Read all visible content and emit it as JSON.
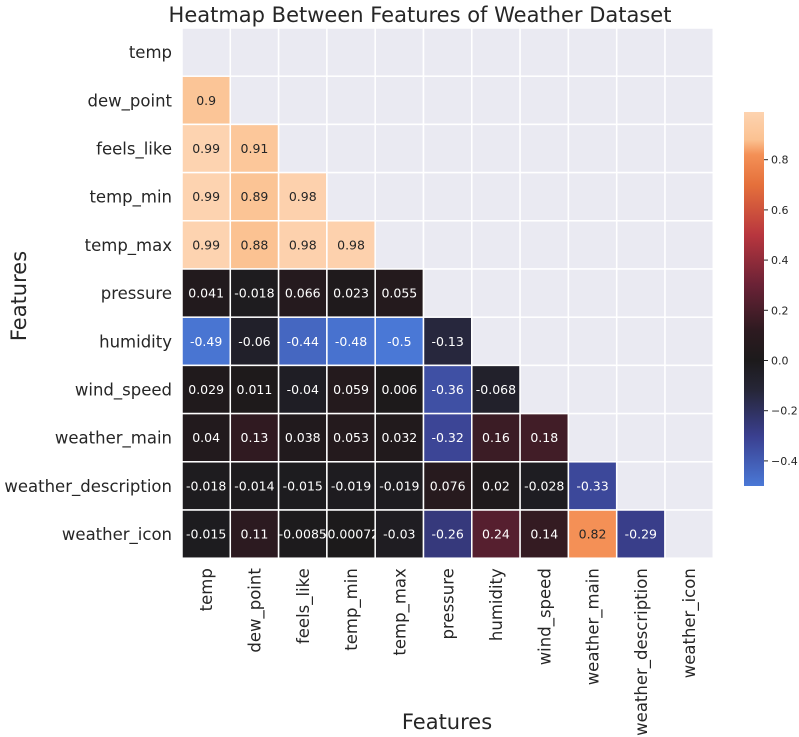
{
  "chart_data": {
    "type": "heatmap",
    "title": "Heatmap Between Features of Weather Dataset",
    "xlabel": "Features",
    "ylabel": "Features",
    "labels": [
      "temp",
      "dew_point",
      "feels_like",
      "temp_min",
      "temp_max",
      "pressure",
      "humidity",
      "wind_speed",
      "weather_main",
      "weather_description",
      "weather_icon"
    ],
    "mask": "upper-triangle-and-diagonal",
    "values": [
      [
        null,
        null,
        null,
        null,
        null,
        null,
        null,
        null,
        null,
        null,
        null
      ],
      [
        0.9,
        null,
        null,
        null,
        null,
        null,
        null,
        null,
        null,
        null,
        null
      ],
      [
        0.99,
        0.91,
        null,
        null,
        null,
        null,
        null,
        null,
        null,
        null,
        null
      ],
      [
        0.99,
        0.89,
        0.98,
        null,
        null,
        null,
        null,
        null,
        null,
        null,
        null
      ],
      [
        0.99,
        0.88,
        0.98,
        0.98,
        null,
        null,
        null,
        null,
        null,
        null,
        null
      ],
      [
        0.041,
        -0.018,
        0.066,
        0.023,
        0.055,
        null,
        null,
        null,
        null,
        null,
        null
      ],
      [
        -0.49,
        -0.06,
        -0.44,
        -0.48,
        -0.5,
        -0.13,
        null,
        null,
        null,
        null,
        null
      ],
      [
        0.029,
        0.011,
        -0.04,
        0.059,
        0.006,
        -0.36,
        -0.068,
        null,
        null,
        null,
        null
      ],
      [
        0.04,
        0.13,
        0.038,
        0.053,
        0.032,
        -0.32,
        0.16,
        0.18,
        null,
        null,
        null
      ],
      [
        -0.018,
        -0.014,
        -0.015,
        -0.019,
        -0.019,
        0.076,
        0.02,
        -0.028,
        -0.33,
        null,
        null
      ],
      [
        -0.015,
        0.11,
        -0.0085,
        -0.00072,
        -0.03,
        -0.26,
        0.24,
        0.14,
        0.82,
        -0.29,
        null
      ]
    ],
    "colorbar": {
      "range": [
        -0.5,
        0.99
      ],
      "ticks": [
        -0.4,
        -0.2,
        0.0,
        0.2,
        0.4,
        0.6,
        0.8
      ],
      "tick_labels": [
        "−0.4",
        "−0.2",
        "0.0",
        "0.2",
        "0.4",
        "0.6",
        "0.8"
      ],
      "colormap": "icefire-centered",
      "stops": [
        {
          "v": -0.5,
          "color": "#4a78d6"
        },
        {
          "v": -0.3,
          "color": "#3a3f8f"
        },
        {
          "v": -0.12,
          "color": "#262638"
        },
        {
          "v": 0.0,
          "color": "#1c1a1b"
        },
        {
          "v": 0.12,
          "color": "#2d1a20"
        },
        {
          "v": 0.3,
          "color": "#6a2236"
        },
        {
          "v": 0.5,
          "color": "#b8363e"
        },
        {
          "v": 0.7,
          "color": "#e5703b"
        },
        {
          "v": 0.82,
          "color": "#f49056"
        },
        {
          "v": 0.88,
          "color": "#fbc292"
        },
        {
          "v": 0.99,
          "color": "#fdd3b0"
        }
      ]
    },
    "colors": {
      "masked": "#eaeaf2",
      "gridline": "#ffffff",
      "text_dark": "#262626",
      "text_light": "#ffffff"
    }
  }
}
